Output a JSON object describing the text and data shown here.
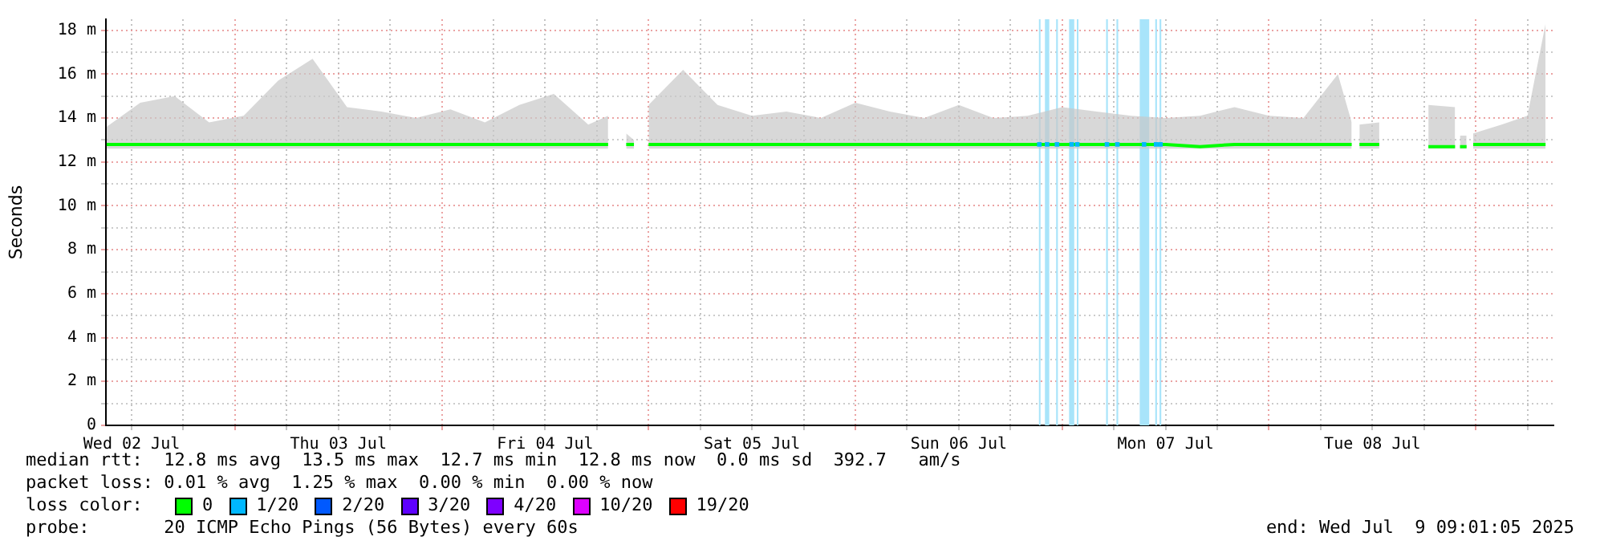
{
  "chart_data": {
    "type": "line",
    "ylabel": "Seconds",
    "legend_title": "loss color:",
    "legend": "bottom",
    "grid": true,
    "x": [
      "2025-07-02T09:06",
      "2025-07-02T13:00",
      "2025-07-02T17:00",
      "2025-07-02T21:00",
      "2025-07-03T01:00",
      "2025-07-03T05:00",
      "2025-07-03T09:00",
      "2025-07-03T13:00",
      "2025-07-03T17:00",
      "2025-07-03T21:00",
      "2025-07-04T01:00",
      "2025-07-04T05:00",
      "2025-07-04T09:00",
      "2025-07-04T13:00",
      "2025-07-04T17:00",
      "2025-07-04T19:18",
      "2025-07-04T20:24",
      "2025-07-04T21:24",
      "2025-07-04T22:18",
      "2025-07-04T23:06",
      "2025-07-05T00:00",
      "2025-07-05T04:00",
      "2025-07-05T08:00",
      "2025-07-05T12:00",
      "2025-07-05T16:00",
      "2025-07-05T20:00",
      "2025-07-06T00:00",
      "2025-07-06T04:00",
      "2025-07-06T08:00",
      "2025-07-06T12:00",
      "2025-07-06T16:00",
      "2025-07-06T20:00",
      "2025-07-07T00:00",
      "2025-07-07T04:00",
      "2025-07-07T08:00",
      "2025-07-07T12:00",
      "2025-07-07T16:00",
      "2025-07-07T20:00",
      "2025-07-08T00:00",
      "2025-07-08T04:00",
      "2025-07-08T08:00",
      "2025-07-08T09:36",
      "2025-07-08T10:06",
      "2025-07-08T10:30",
      "2025-07-08T12:48",
      "2025-07-08T15:00",
      "2025-07-08T18:30",
      "2025-07-08T21:36",
      "2025-07-08T22:00",
      "2025-07-08T22:10",
      "2025-07-08T22:56",
      "2025-07-08T23:12",
      "2025-07-08T23:42",
      "2025-07-09T03:00",
      "2025-07-09T06:00",
      "2025-07-09T08:06"
    ],
    "xlim": [
      "2025-07-02T09:01",
      "2025-07-09T09:01"
    ],
    "xticks": [
      {
        "value": "2025-07-02T12:00",
        "label": "Wed 02 Jul"
      },
      {
        "value": "2025-07-02T18:00",
        "label": null
      },
      {
        "value": "2025-07-03T00:00",
        "label": null
      },
      {
        "value": "2025-07-03T06:00",
        "label": null
      },
      {
        "value": "2025-07-03T12:00",
        "label": "Thu 03 Jul"
      },
      {
        "value": "2025-07-03T18:00",
        "label": null
      },
      {
        "value": "2025-07-04T00:00",
        "label": null
      },
      {
        "value": "2025-07-04T06:00",
        "label": null
      },
      {
        "value": "2025-07-04T12:00",
        "label": "Fri 04 Jul"
      },
      {
        "value": "2025-07-04T18:00",
        "label": null
      },
      {
        "value": "2025-07-05T00:00",
        "label": null
      },
      {
        "value": "2025-07-05T06:00",
        "label": null
      },
      {
        "value": "2025-07-05T12:00",
        "label": "Sat 05 Jul"
      },
      {
        "value": "2025-07-05T18:00",
        "label": null
      },
      {
        "value": "2025-07-06T00:00",
        "label": null
      },
      {
        "value": "2025-07-06T06:00",
        "label": null
      },
      {
        "value": "2025-07-06T12:00",
        "label": "Sun 06 Jul"
      },
      {
        "value": "2025-07-06T18:00",
        "label": null
      },
      {
        "value": "2025-07-07T00:00",
        "label": null
      },
      {
        "value": "2025-07-07T06:00",
        "label": null
      },
      {
        "value": "2025-07-07T12:00",
        "label": "Mon 07 Jul"
      },
      {
        "value": "2025-07-07T18:00",
        "label": null
      },
      {
        "value": "2025-07-08T00:00",
        "label": null
      },
      {
        "value": "2025-07-08T06:00",
        "label": null
      },
      {
        "value": "2025-07-08T12:00",
        "label": "Tue 08 Jul"
      },
      {
        "value": "2025-07-08T18:00",
        "label": null
      },
      {
        "value": "2025-07-09T00:00",
        "label": null
      },
      {
        "value": "2025-07-09T06:00",
        "label": null
      }
    ],
    "ylim": [
      0,
      18.5
    ],
    "yticks": [
      {
        "value": 0,
        "label": "0"
      },
      {
        "value": 1,
        "label": null
      },
      {
        "value": 2,
        "label": "2 m"
      },
      {
        "value": 3,
        "label": null
      },
      {
        "value": 4,
        "label": "4 m"
      },
      {
        "value": 5,
        "label": null
      },
      {
        "value": 6,
        "label": "6 m"
      },
      {
        "value": 7,
        "label": null
      },
      {
        "value": 8,
        "label": "8 m"
      },
      {
        "value": 9,
        "label": null
      },
      {
        "value": 10,
        "label": "10 m"
      },
      {
        "value": 11,
        "label": null
      },
      {
        "value": 12,
        "label": "12 m"
      },
      {
        "value": 13,
        "label": null
      },
      {
        "value": 14,
        "label": "14 m"
      },
      {
        "value": 15,
        "label": null
      },
      {
        "value": 16,
        "label": "16 m"
      },
      {
        "value": 17,
        "label": null
      },
      {
        "value": 18,
        "label": "18 m"
      }
    ],
    "series": [
      {
        "name": "0",
        "color": "#00ff00",
        "values": [
          12.8,
          12.8,
          12.8,
          12.8,
          12.8,
          12.8,
          12.8,
          12.8,
          12.8,
          12.8,
          12.8,
          12.8,
          12.8,
          12.8,
          12.8,
          12.8,
          null,
          12.8,
          12.8,
          null,
          12.8,
          12.8,
          12.8,
          12.8,
          12.8,
          12.8,
          12.8,
          12.8,
          12.8,
          12.8,
          12.8,
          12.8,
          12.8,
          12.8,
          12.8,
          12.8,
          12.7,
          12.8,
          12.8,
          12.8,
          12.8,
          12.8,
          null,
          12.8,
          12.8,
          null,
          12.7,
          12.7,
          null,
          12.7,
          12.7,
          null,
          12.8,
          12.8,
          12.8,
          12.8
        ],
        "lower": [
          12.6,
          12.6,
          12.6,
          12.6,
          12.6,
          12.6,
          12.6,
          12.6,
          12.6,
          12.6,
          12.6,
          12.6,
          12.6,
          12.6,
          12.6,
          12.6,
          null,
          12.6,
          12.6,
          null,
          12.6,
          12.6,
          12.6,
          12.6,
          12.6,
          12.6,
          12.6,
          12.6,
          12.6,
          12.6,
          12.6,
          12.6,
          12.6,
          12.6,
          12.6,
          12.6,
          12.6,
          12.6,
          12.6,
          12.6,
          12.6,
          12.6,
          null,
          12.6,
          12.6,
          null,
          12.6,
          12.6,
          null,
          12.6,
          12.6,
          null,
          12.6,
          12.6,
          12.6,
          12.6
        ],
        "upper": [
          13.6,
          14.7,
          15.0,
          13.8,
          14.1,
          15.7,
          16.7,
          14.5,
          14.3,
          14.0,
          14.4,
          13.8,
          14.6,
          15.1,
          13.7,
          14.1,
          null,
          13.3,
          13.0,
          null,
          14.6,
          16.2,
          14.6,
          14.1,
          14.3,
          14.0,
          14.7,
          14.3,
          14.0,
          14.6,
          14.0,
          14.1,
          14.5,
          14.3,
          14.1,
          14.0,
          14.1,
          14.5,
          14.1,
          14.0,
          16.0,
          13.8,
          null,
          13.7,
          13.8,
          null,
          14.6,
          14.5,
          null,
          13.2,
          13.2,
          null,
          13.3,
          13.7,
          14.1,
          18.3
        ]
      },
      {
        "name": "1/20",
        "type": "scatter",
        "color": "#00b8ff",
        "x": [
          "2025-07-06T21:21",
          "2025-07-06T22:15",
          "2025-07-06T23:24",
          "2025-07-07T01:06",
          "2025-07-07T01:45",
          "2025-07-07T05:12",
          "2025-07-07T06:24",
          "2025-07-07T09:30",
          "2025-07-07T10:54",
          "2025-07-07T11:24"
        ],
        "values": [
          12.8,
          12.8,
          12.8,
          12.8,
          12.8,
          12.8,
          12.8,
          12.8,
          12.8,
          12.8
        ]
      },
      {
        "name": "2/20",
        "color": "#0059ff",
        "values": [
          null,
          null,
          null,
          null,
          null,
          null,
          null,
          null,
          null,
          null,
          null,
          null,
          null,
          null,
          null,
          null,
          null,
          null,
          null,
          null,
          null,
          null,
          null,
          null,
          null,
          null,
          null,
          null,
          null,
          null,
          null,
          null,
          null,
          null,
          null,
          null,
          null,
          null,
          null,
          null,
          null,
          null,
          null,
          null,
          null,
          null,
          null,
          null,
          null,
          null,
          null,
          null,
          null,
          null,
          null,
          null
        ]
      },
      {
        "name": "3/20",
        "color": "#5e00ff",
        "values": [
          null,
          null,
          null,
          null,
          null,
          null,
          null,
          null,
          null,
          null,
          null,
          null,
          null,
          null,
          null,
          null,
          null,
          null,
          null,
          null,
          null,
          null,
          null,
          null,
          null,
          null,
          null,
          null,
          null,
          null,
          null,
          null,
          null,
          null,
          null,
          null,
          null,
          null,
          null,
          null,
          null,
          null,
          null,
          null,
          null,
          null,
          null,
          null,
          null,
          null,
          null,
          null,
          null,
          null,
          null,
          null
        ]
      },
      {
        "name": "4/20",
        "color": "#7e00ff",
        "values": [
          null,
          null,
          null,
          null,
          null,
          null,
          null,
          null,
          null,
          null,
          null,
          null,
          null,
          null,
          null,
          null,
          null,
          null,
          null,
          null,
          null,
          null,
          null,
          null,
          null,
          null,
          null,
          null,
          null,
          null,
          null,
          null,
          null,
          null,
          null,
          null,
          null,
          null,
          null,
          null,
          null,
          null,
          null,
          null,
          null,
          null,
          null,
          null,
          null,
          null,
          null,
          null,
          null,
          null,
          null,
          null
        ]
      },
      {
        "name": "10/20",
        "color": "#dd00ff",
        "values": [
          null,
          null,
          null,
          null,
          null,
          null,
          null,
          null,
          null,
          null,
          null,
          null,
          null,
          null,
          null,
          null,
          null,
          null,
          null,
          null,
          null,
          null,
          null,
          null,
          null,
          null,
          null,
          null,
          null,
          null,
          null,
          null,
          null,
          null,
          null,
          null,
          null,
          null,
          null,
          null,
          null,
          null,
          null,
          null,
          null,
          null,
          null,
          null,
          null,
          null,
          null,
          null,
          null,
          null,
          null,
          null
        ]
      },
      {
        "name": "19/20",
        "color": "#ff0000",
        "values": [
          null,
          null,
          null,
          null,
          null,
          null,
          null,
          null,
          null,
          null,
          null,
          null,
          null,
          null,
          null,
          null,
          null,
          null,
          null,
          null,
          null,
          null,
          null,
          null,
          null,
          null,
          null,
          null,
          null,
          null,
          null,
          null,
          null,
          null,
          null,
          null,
          null,
          null,
          null,
          null,
          null,
          null,
          null,
          null,
          null,
          null,
          null,
          null,
          null,
          null,
          null,
          null,
          null,
          null,
          null,
          null
        ]
      }
    ],
    "bands": [
      {
        "axis": "x",
        "from": "2025-07-06T21:18",
        "to": "2025-07-06T21:24",
        "color": "#a8e4fa"
      },
      {
        "axis": "x",
        "from": "2025-07-06T22:00",
        "to": "2025-07-06T22:30",
        "color": "#a8e4fa"
      },
      {
        "axis": "x",
        "from": "2025-07-06T23:18",
        "to": "2025-07-06T23:30",
        "color": "#a8e4fa"
      },
      {
        "axis": "x",
        "from": "2025-07-07T00:48",
        "to": "2025-07-07T01:24",
        "color": "#a8e4fa"
      },
      {
        "axis": "x",
        "from": "2025-07-07T01:42",
        "to": "2025-07-07T01:48",
        "color": "#a8e4fa"
      },
      {
        "axis": "x",
        "from": "2025-07-07T05:06",
        "to": "2025-07-07T05:18",
        "color": "#a8e4fa"
      },
      {
        "axis": "x",
        "from": "2025-07-07T06:18",
        "to": "2025-07-07T06:30",
        "color": "#a8e4fa"
      },
      {
        "axis": "x",
        "from": "2025-07-07T09:00",
        "to": "2025-07-07T10:06",
        "color": "#a8e4fa"
      },
      {
        "axis": "x",
        "from": "2025-07-07T10:48",
        "to": "2025-07-07T11:00",
        "color": "#a8e4fa"
      },
      {
        "axis": "x",
        "from": "2025-07-07T11:18",
        "to": "2025-07-07T11:30",
        "color": "#a8e4fa"
      }
    ],
    "annotations": [
      "median rtt:  12.8 ms avg  13.5 ms max  12.7 ms min  12.8 ms now  0.0 ms sd  392.7   am/s",
      "packet loss: 0.01 % avg  1.25 % max  0.00 % min  0.00 % now",
      "probe:       20 ICMP Echo Pings (56 Bytes) every 60s",
      "end: Wed Jul  9 09:01:05 2025"
    ]
  }
}
